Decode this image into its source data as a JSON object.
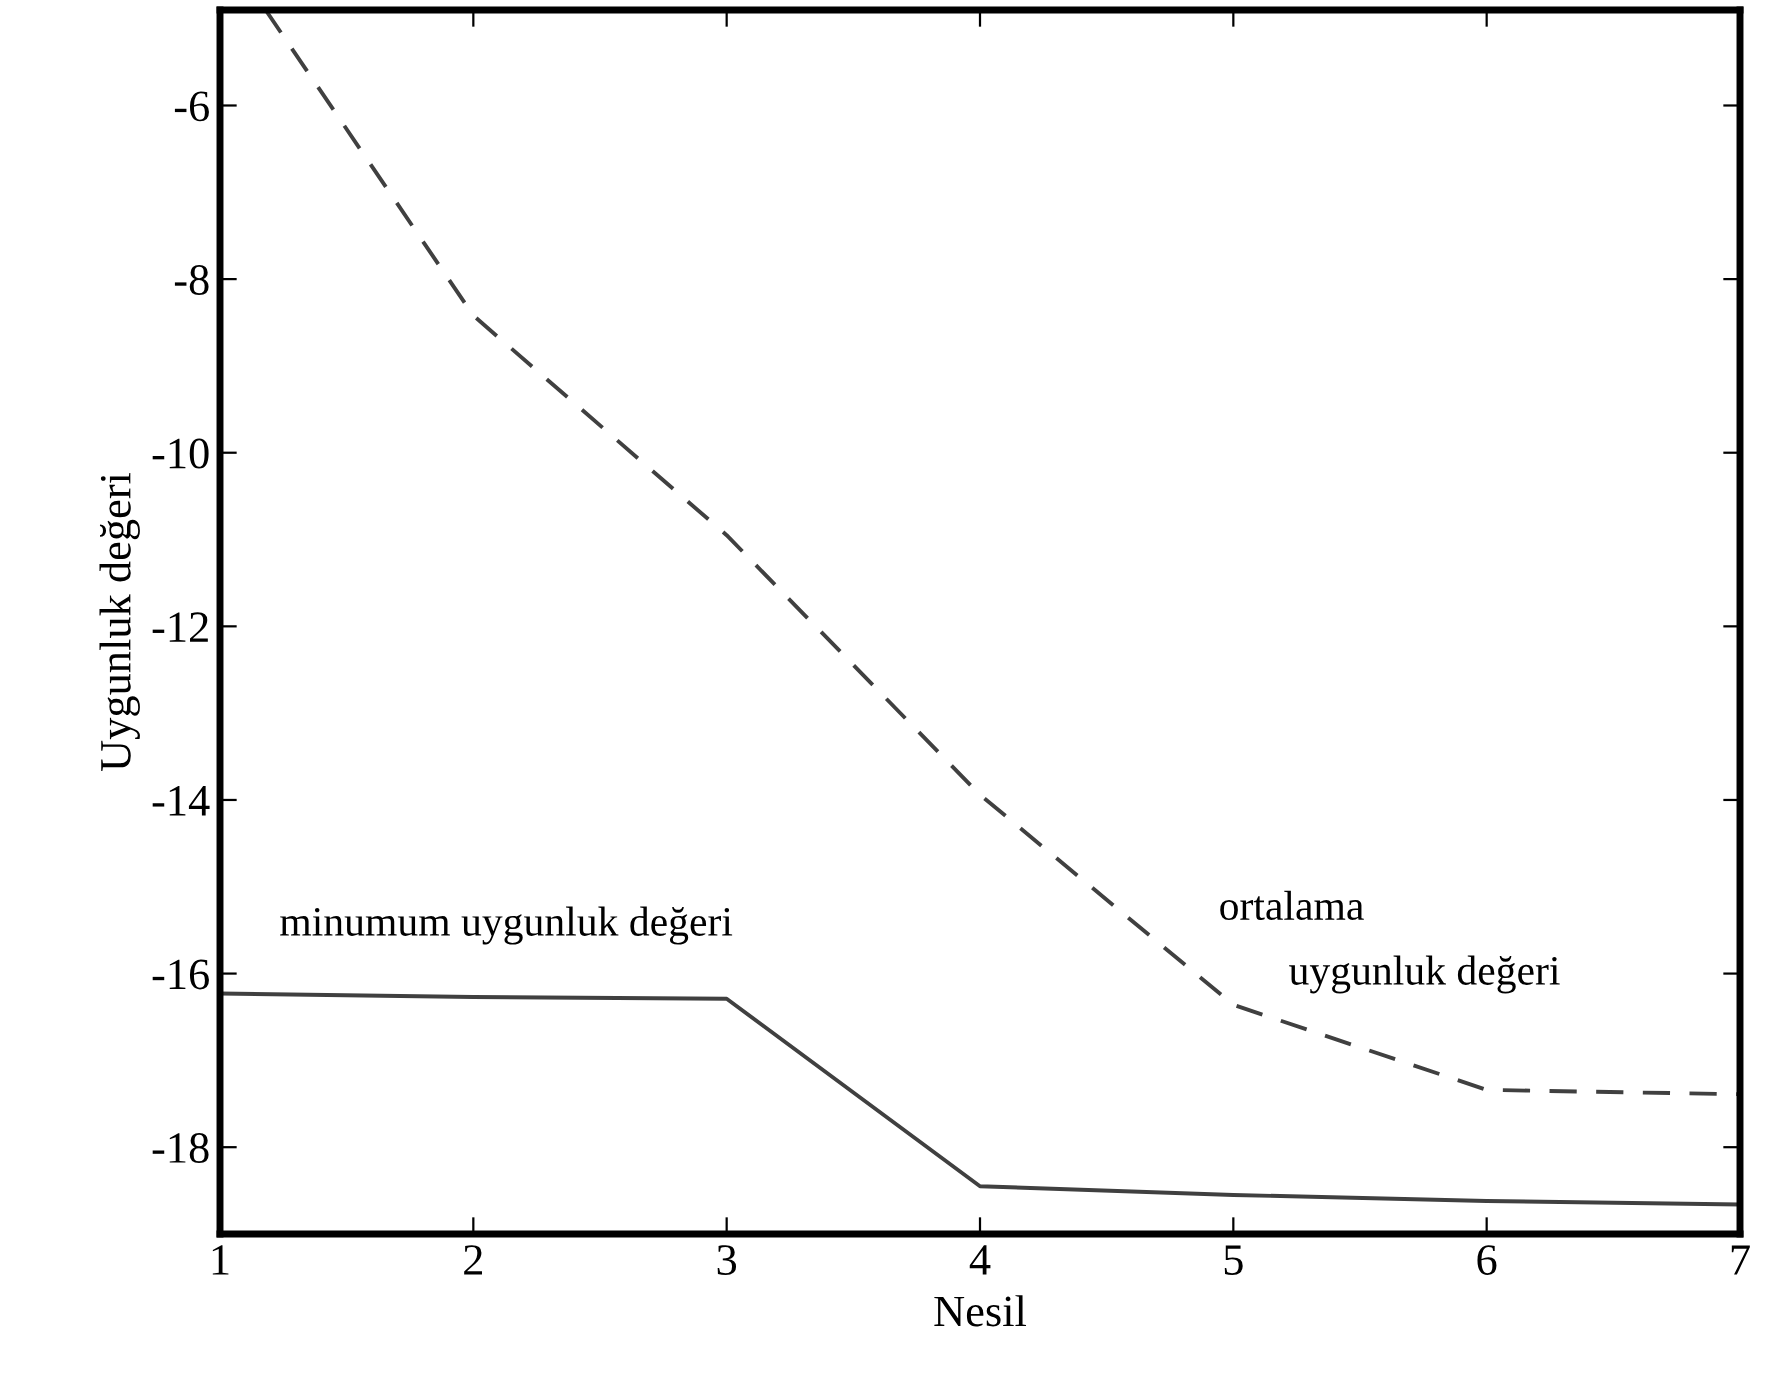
{
  "chart_data": {
    "type": "line",
    "xlabel": "Nesil",
    "ylabel": "Uygunluk değeri",
    "series": [
      {
        "x": [
          1.18,
          2,
          3,
          4,
          5,
          6,
          7
        ],
        "values": [
          -4.9,
          -8.42,
          -10.95,
          -13.94,
          -16.36,
          -17.34,
          -17.39
        ],
        "color": "#404040",
        "line_style": "dashed"
      },
      {
        "x": [
          1,
          2,
          3,
          4,
          5,
          6,
          7
        ],
        "values": [
          -16.23,
          -16.27,
          -16.29,
          -18.45,
          -18.55,
          -18.62,
          -18.66
        ],
        "color": "#404040",
        "line_style": "solid"
      }
    ],
    "annotations": [
      "minumum uygunluk değeri",
      "ortalama",
      "uygunluk değeri"
    ],
    "xlim": [
      1,
      7
    ],
    "ylim": [
      -19.0,
      -4.9
    ],
    "xticks": [
      1,
      2,
      3,
      4,
      5,
      6,
      7
    ],
    "yticks": [
      -6,
      -8,
      -10,
      -12,
      -14,
      -16,
      -18
    ],
    "grid": false,
    "legend": false,
    "marker": "none"
  }
}
